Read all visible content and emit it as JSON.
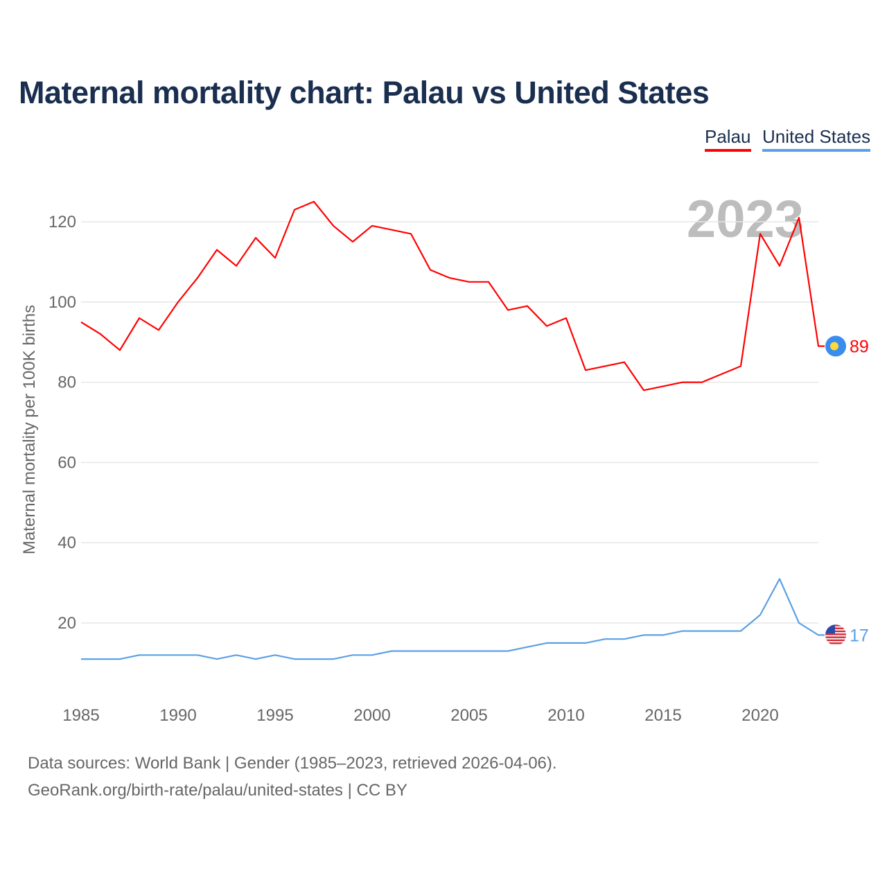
{
  "title": "Maternal mortality chart: Palau vs United States",
  "legend": [
    "Palau",
    "United States"
  ],
  "footer": {
    "line1": "Data sources: World Bank | Gender (1985–2023, retrieved 2026-04-06).",
    "line2": "GeoRank.org/birth-rate/palau/united-states | CC BY"
  },
  "chart_data": {
    "type": "line",
    "title": "Maternal mortality chart: Palau vs United States",
    "xlabel": "",
    "ylabel": "Maternal mortality per 100K births",
    "year_watermark": "2023",
    "x": [
      1985,
      1986,
      1987,
      1988,
      1989,
      1990,
      1991,
      1992,
      1993,
      1994,
      1995,
      1996,
      1997,
      1998,
      1999,
      2000,
      2001,
      2002,
      2003,
      2004,
      2005,
      2006,
      2007,
      2008,
      2009,
      2010,
      2011,
      2012,
      2013,
      2014,
      2015,
      2016,
      2017,
      2018,
      2019,
      2020,
      2021,
      2022,
      2023
    ],
    "xticks": [
      "1985",
      "1990",
      "1995",
      "2000",
      "2005",
      "2010",
      "2015",
      "2020"
    ],
    "yticks": [
      "20",
      "40",
      "60",
      "80",
      "100",
      "120"
    ],
    "ylim": [
      0,
      130
    ],
    "grid": true,
    "legend_position": "top-right",
    "series": [
      {
        "name": "Palau",
        "color": "#ff0000",
        "end_label": "89",
        "values": [
          95,
          92,
          88,
          96,
          93,
          100,
          106,
          113,
          109,
          116,
          111,
          123,
          125,
          119,
          115,
          119,
          118,
          117,
          108,
          106,
          105,
          105,
          98,
          99,
          94,
          96,
          83,
          84,
          85,
          78,
          79,
          80,
          80,
          82,
          84,
          117,
          109,
          121,
          89
        ]
      },
      {
        "name": "United States",
        "color": "#5aa0e6",
        "end_label": "17",
        "values": [
          11,
          11,
          11,
          12,
          12,
          12,
          12,
          11,
          12,
          11,
          12,
          11,
          11,
          11,
          12,
          12,
          13,
          13,
          13,
          13,
          13,
          13,
          13,
          14,
          15,
          15,
          15,
          16,
          16,
          17,
          17,
          18,
          18,
          18,
          18,
          22,
          31,
          20,
          17
        ]
      }
    ]
  }
}
